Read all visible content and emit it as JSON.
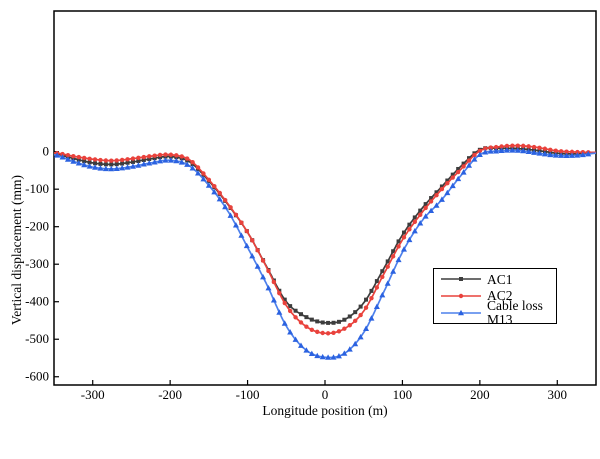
{
  "chart_data": {
    "type": "line",
    "title": "",
    "xlabel": "Longitude position (m)",
    "ylabel": "Vertical displacement (mm)",
    "xlim": [
      -350,
      350
    ],
    "ylim": [
      -622,
      375
    ],
    "x_ticks": [
      -300,
      -200,
      -100,
      0,
      100,
      200,
      300
    ],
    "y_ticks": [
      0,
      -100,
      -200,
      -300,
      -400,
      -500,
      -600
    ],
    "grid": false,
    "legend_position": "inside-right",
    "x": [
      -350,
      -325,
      -300,
      -275,
      -250,
      -225,
      -200,
      -175,
      -150,
      -125,
      -100,
      -75,
      -50,
      -25,
      0,
      25,
      50,
      75,
      100,
      125,
      150,
      175,
      200,
      225,
      250,
      275,
      300,
      325,
      350
    ],
    "series": [
      {
        "name": "AC1",
        "color": "#3d3d3d",
        "marker": "square",
        "values": [
          -5,
          -18,
          -30,
          -34,
          -28,
          -19,
          -13,
          -27,
          -78,
          -142,
          -215,
          -308,
          -400,
          -440,
          -456,
          -448,
          -403,
          -315,
          -222,
          -152,
          -95,
          -40,
          5,
          9,
          8,
          3,
          -4,
          -6,
          -3
        ]
      },
      {
        "name": "AC2",
        "color": "#e9423c",
        "marker": "circle",
        "values": [
          -3,
          -12,
          -20,
          -24,
          -19,
          -12,
          -8,
          -22,
          -75,
          -140,
          -215,
          -310,
          -410,
          -465,
          -484,
          -472,
          -425,
          -330,
          -235,
          -163,
          -102,
          -48,
          2,
          13,
          16,
          11,
          2,
          -1,
          -2
        ]
      },
      {
        "name": "Cable loss M13",
        "color": "#2b62e0",
        "line_color": "#4d80ec",
        "marker": "triangle",
        "values": [
          -8,
          -26,
          -41,
          -46,
          -40,
          -30,
          -23,
          -38,
          -90,
          -160,
          -255,
          -355,
          -465,
          -528,
          -548,
          -538,
          -482,
          -378,
          -268,
          -185,
          -130,
          -65,
          -8,
          2,
          3,
          -4,
          -10,
          -10,
          -4
        ]
      }
    ]
  }
}
